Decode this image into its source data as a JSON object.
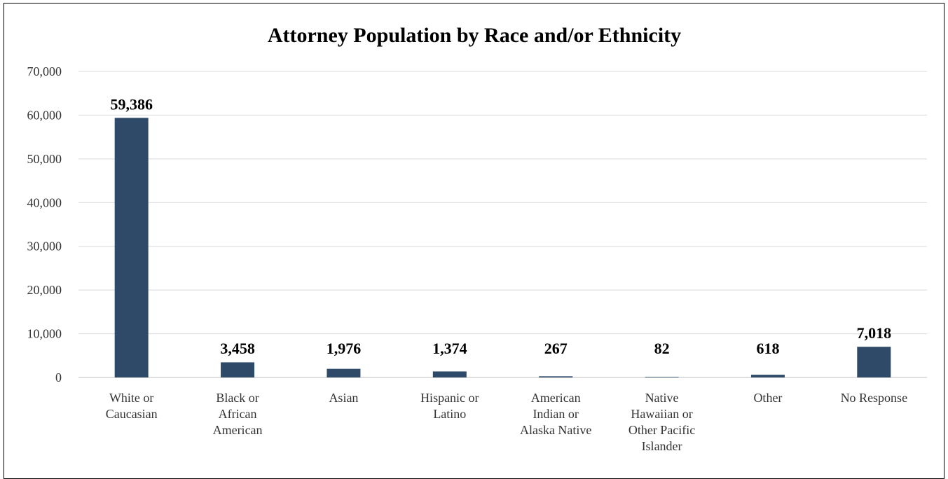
{
  "chart_data": {
    "type": "bar",
    "title": "Attorney Population by Race and/or Ethnicity",
    "categories": [
      [
        "White or",
        "Caucasian"
      ],
      [
        "Black or",
        "African",
        "American"
      ],
      [
        "Asian"
      ],
      [
        "Hispanic or",
        "Latino"
      ],
      [
        "American",
        "Indian or",
        "Alaska Native"
      ],
      [
        "Native",
        "Hawaiian or",
        "Other Pacific",
        "Islander"
      ],
      [
        "Other"
      ],
      [
        "No Response"
      ]
    ],
    "values": [
      59386,
      3458,
      1976,
      1374,
      267,
      82,
      618,
      7018
    ],
    "data_labels": [
      "59,386",
      "3,458",
      "1,976",
      "1,374",
      "267",
      "82",
      "618",
      "7,018"
    ],
    "y_ticks": [
      "0",
      "10,000",
      "20,000",
      "30,000",
      "40,000",
      "50,000",
      "60,000",
      "70,000"
    ],
    "ylim": [
      0,
      70000
    ],
    "grid": true,
    "bar_color": "#2e4a68"
  }
}
